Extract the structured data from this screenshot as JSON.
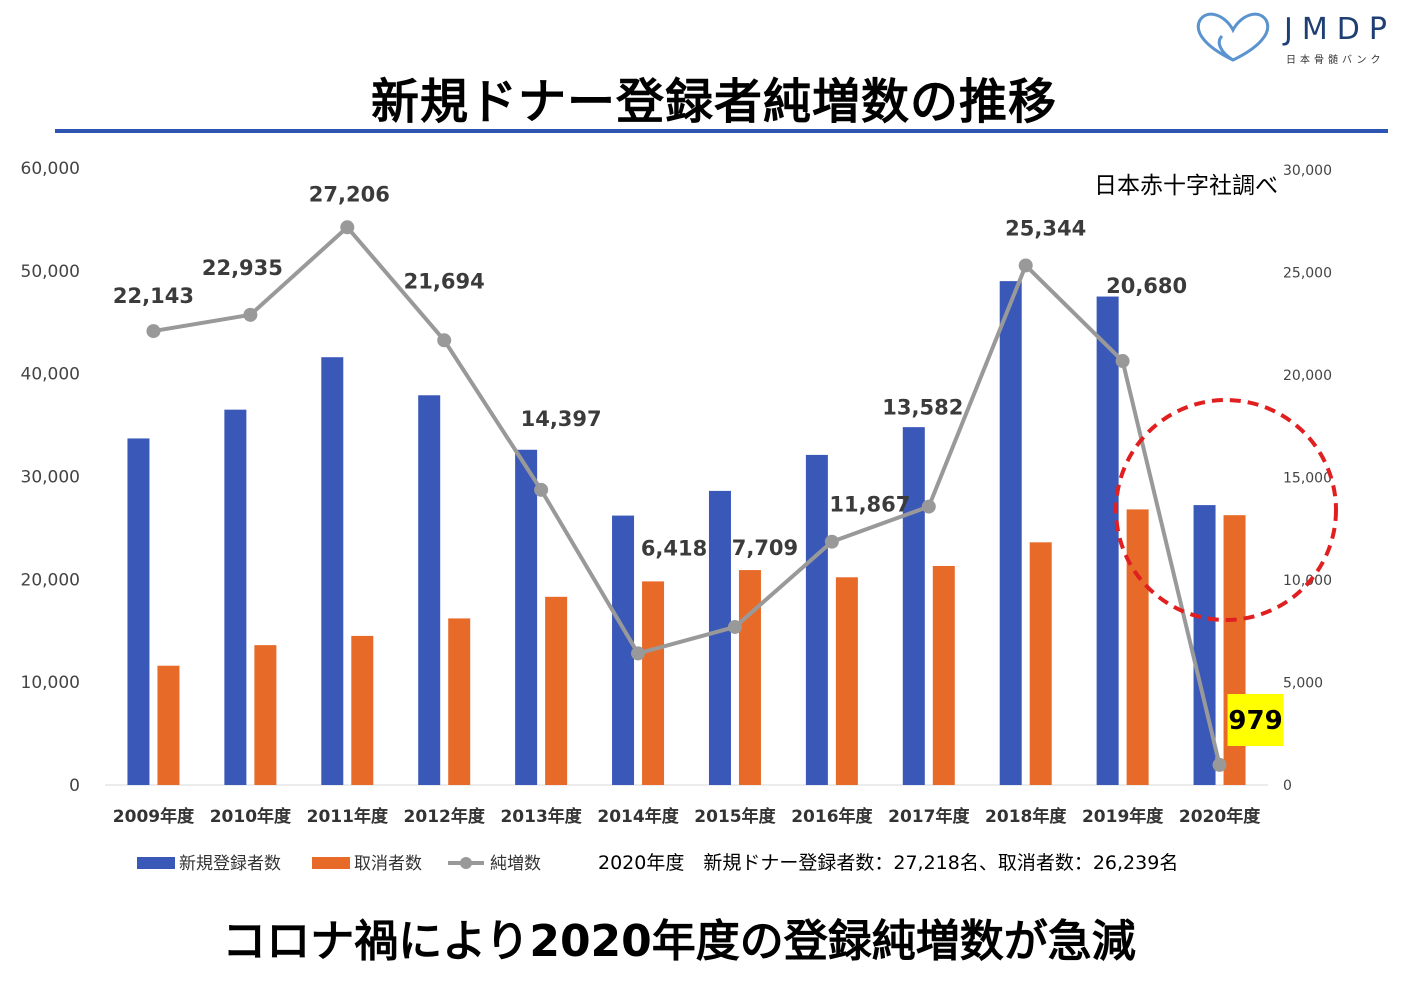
{
  "header": {
    "title": "新規ドナー登録者純増数の推移",
    "logo_text": "JMDP",
    "logo_sub": "日本骨髄バンク"
  },
  "source": "日本赤十字社調べ",
  "note": "2020年度　新規ドナー登録者数：27,218名、取消者数：26,239名",
  "footer": "コロナ禍により2020年度の登録純増数が急減",
  "colors": {
    "new_reg": "#3a58b8",
    "cancel": "#e86a28",
    "net": "#999999",
    "rule": "#2f55b3",
    "highlight_circle": "#e02020",
    "highlight_box": "#ffff00"
  },
  "chart_data": {
    "type": "bar",
    "categories": [
      "2009年度",
      "2010年度",
      "2011年度",
      "2012年度",
      "2013年度",
      "2014年度",
      "2015年度",
      "2016年度",
      "2017年度",
      "2018年度",
      "2019年度",
      "2020年度"
    ],
    "series": [
      {
        "name": "新規登録者数",
        "type": "bar",
        "axis": "left",
        "values": [
          33700,
          36500,
          41600,
          37900,
          32600,
          26200,
          28600,
          32100,
          34800,
          49000,
          47500,
          27218
        ]
      },
      {
        "name": "取消者数",
        "type": "bar",
        "axis": "left",
        "values": [
          11600,
          13600,
          14500,
          16200,
          18300,
          19800,
          20900,
          20200,
          21300,
          23600,
          26800,
          26239
        ]
      },
      {
        "name": "純増数",
        "type": "line",
        "axis": "right",
        "values": [
          22143,
          22935,
          27206,
          21694,
          14397,
          6418,
          7709,
          11867,
          13582,
          25344,
          20680,
          979
        ],
        "labels": [
          "22,143",
          "22,935",
          "27,206",
          "21,694",
          "14,397",
          "6,418",
          "7,709",
          "11,867",
          "13,582",
          "25,344",
          "20,680",
          "979"
        ]
      }
    ],
    "y_left": {
      "min": 0,
      "max": 60000,
      "ticks": [
        "0",
        "10,000",
        "20,000",
        "30,000",
        "40,000",
        "50,000",
        "60,000"
      ]
    },
    "y_right": {
      "min": 0,
      "max": 30000,
      "ticks": [
        "0",
        "5,000",
        "10,000",
        "15,000",
        "20,000",
        "25,000",
        "30,000"
      ]
    },
    "grid": false,
    "legend_placement": "bottom-left",
    "highlight": {
      "category": "2020年度",
      "label": "979"
    }
  }
}
